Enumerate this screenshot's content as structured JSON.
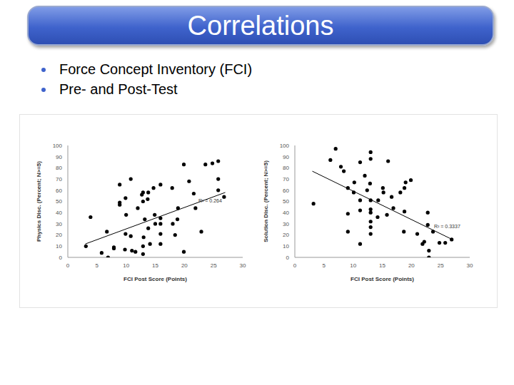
{
  "slide": {
    "title": "Correlations",
    "bullets": [
      "Force Concept Inventory (FCI)",
      "Pre- and Post-Test"
    ]
  },
  "chart_data": [
    {
      "type": "scatter",
      "x_label": "FCI Post Score (Points)",
      "y_label": "Physics Disc. (Percent; N>=5)",
      "x": [
        3.1,
        3.9,
        5.8,
        6.7,
        6.9,
        7.9,
        7.9,
        8.9,
        8.9,
        8.9,
        9.8,
        9.9,
        10,
        10.8,
        9.9,
        10.8,
        11,
        11.6,
        12,
        12.7,
        12.9,
        12.9,
        12.9,
        12.9,
        13,
        13.2,
        13.7,
        13.8,
        13.8,
        14.1,
        14.7,
        14.9,
        15,
        15.9,
        15.9,
        15.9,
        15.9,
        15.9,
        17.9,
        18,
        18.4,
        18.8,
        18.9,
        19.9,
        19.9,
        20.8,
        21.6,
        21.9,
        22.9,
        23.6,
        24.8,
        25.8,
        25.8,
        25.8,
        26.8
      ],
      "values": [
        10,
        36,
        4,
        23,
        0,
        8,
        9,
        47,
        49,
        65,
        7,
        53,
        38,
        70,
        21,
        19,
        6,
        5,
        44,
        56,
        58,
        50,
        10,
        3,
        18,
        34,
        52,
        58,
        26,
        12,
        62,
        38,
        30,
        35,
        30,
        21,
        12,
        65,
        62,
        30,
        20,
        34,
        44,
        83,
        5,
        68,
        57,
        44,
        23,
        83,
        84,
        86,
        70,
        60,
        54
      ],
      "color": "#000000",
      "marker": "circle",
      "xlim": [
        0,
        30
      ],
      "xticks": [
        0,
        5,
        10,
        15,
        20,
        25,
        30
      ],
      "ylim": [
        0,
        100
      ],
      "yticks": [
        0,
        10,
        20,
        30,
        40,
        50,
        60,
        70,
        80,
        90,
        100
      ],
      "grid": false,
      "trendline": {
        "x": [
          3,
          27
        ],
        "values": [
          12,
          58
        ]
      },
      "annotation": "R² = 0.264"
    },
    {
      "type": "scatter",
      "x_label": "FCI Post Score (Points)",
      "y_label": "Solution Disc. (Percent; N>=5)",
      "x": [
        3.2,
        6.1,
        7,
        7.9,
        8.4,
        9.1,
        9.1,
        9.1,
        10.1,
        10.2,
        11.2,
        11.2,
        11.2,
        11.2,
        12,
        12.4,
        12.9,
        13,
        13,
        13,
        13,
        13,
        13,
        13,
        13,
        14.2,
        14.3,
        15.1,
        15.2,
        15.8,
        16,
        16.6,
        16.9,
        18.1,
        18.8,
        19,
        18.8,
        19.9,
        18.7,
        21,
        21.9,
        22.2,
        22.8,
        22.8,
        23,
        23,
        23.7,
        24.8,
        25.8,
        26.9
      ],
      "values": [
        48,
        87,
        97,
        81,
        77,
        62,
        39,
        23,
        58,
        67,
        51,
        42,
        85,
        12,
        73,
        60,
        66,
        94,
        88,
        51,
        43,
        40,
        32,
        27,
        21,
        36,
        51,
        62,
        58,
        38,
        86,
        54,
        44,
        58,
        62,
        67,
        41,
        69,
        23,
        21,
        12,
        14,
        40,
        29,
        6,
        0,
        23,
        13,
        13,
        16
      ],
      "color": "#000000",
      "marker": "circle",
      "xlim": [
        0,
        30
      ],
      "xticks": [
        0,
        5,
        10,
        15,
        20,
        25,
        30
      ],
      "ylim": [
        0,
        100
      ],
      "yticks": [
        0,
        10,
        20,
        30,
        40,
        50,
        60,
        70,
        80,
        90,
        100
      ],
      "grid": false,
      "trendline": {
        "x": [
          3,
          27
        ],
        "values": [
          77,
          16
        ]
      },
      "annotation": "R² = 0.3337"
    }
  ]
}
